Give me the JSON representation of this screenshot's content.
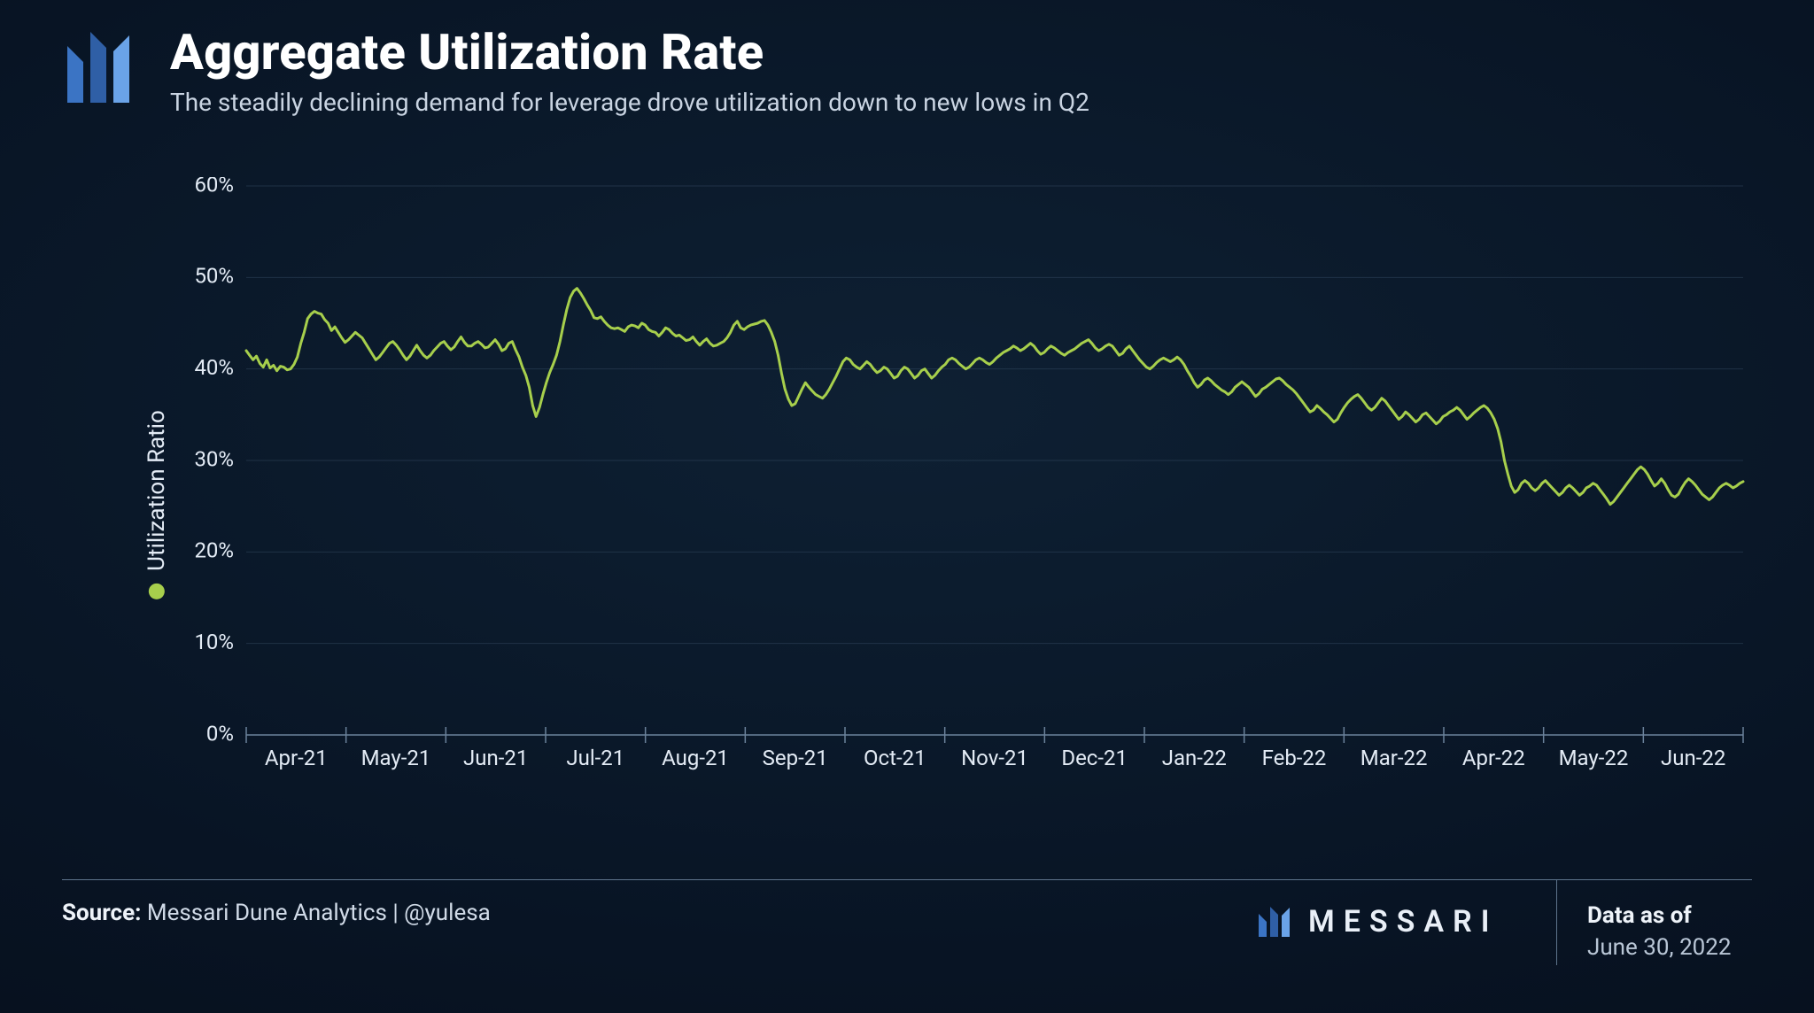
{
  "header": {
    "title": "Aggregate Utilization Rate",
    "subtitle": "The steadily declining demand for leverage drove utilization down to new lows in Q2"
  },
  "logo": {
    "bar_colors": [
      "#3b74c4",
      "#2f5fa6",
      "#6aa3e8"
    ]
  },
  "chart": {
    "type": "line",
    "ylabel": "Utilization Ratio",
    "series_color": "#a7cf4c",
    "legend_dot_color": "#a7cf4c",
    "line_width": 3,
    "background": "transparent",
    "grid_color": "#395068",
    "axis_color": "#6b829b",
    "tick_label_color": "#e3ebf5",
    "label_fontsize": 26,
    "tick_fontsize": 24,
    "ylim": [
      0,
      60
    ],
    "ytick_step": 10,
    "ytick_labels": [
      "0%",
      "10%",
      "20%",
      "30%",
      "40%",
      "50%",
      "60%"
    ],
    "x_labels": [
      "Apr-21",
      "May-21",
      "Jun-21",
      "Jul-21",
      "Aug-21",
      "Sep-21",
      "Oct-21",
      "Nov-21",
      "Dec-21",
      "Jan-22",
      "Feb-22",
      "Mar-22",
      "Apr-22",
      "May-22",
      "Jun-22"
    ],
    "x_count_months": 15,
    "values": [
      42.0,
      41.5,
      41.0,
      41.4,
      40.6,
      40.2,
      41.0,
      40.1,
      40.4,
      39.8,
      40.3,
      40.2,
      39.9,
      40.0,
      40.5,
      41.3,
      42.8,
      44.0,
      45.5,
      46.0,
      46.3,
      46.1,
      46.0,
      45.4,
      45.0,
      44.2,
      44.6,
      44.0,
      43.4,
      42.9,
      43.2,
      43.6,
      44.0,
      43.7,
      43.4,
      42.8,
      42.2,
      41.6,
      41.0,
      41.3,
      41.8,
      42.3,
      42.8,
      43.0,
      42.6,
      42.1,
      41.5,
      41.0,
      41.4,
      42.0,
      42.6,
      42.0,
      41.5,
      41.2,
      41.5,
      42.0,
      42.4,
      42.8,
      43.0,
      42.5,
      42.1,
      42.4,
      43.0,
      43.5,
      42.9,
      42.5,
      42.5,
      42.8,
      43.0,
      42.7,
      42.3,
      42.4,
      42.8,
      43.2,
      42.7,
      42.0,
      42.2,
      42.8,
      43.0,
      42.1,
      41.3,
      40.2,
      39.3,
      38.0,
      36.0,
      34.8,
      35.8,
      37.2,
      38.5,
      39.6,
      40.5,
      41.5,
      43.0,
      44.8,
      46.5,
      47.8,
      48.5,
      48.8,
      48.3,
      47.7,
      47.0,
      46.4,
      45.6,
      45.5,
      45.7,
      45.2,
      44.8,
      44.5,
      44.4,
      44.5,
      44.3,
      44.1,
      44.6,
      44.8,
      44.7,
      44.5,
      45.0,
      44.8,
      44.3,
      44.1,
      44.0,
      43.6,
      44.0,
      44.5,
      44.3,
      43.9,
      43.6,
      43.7,
      43.4,
      43.1,
      43.2,
      43.5,
      43.0,
      42.6,
      43.0,
      43.3,
      42.8,
      42.5,
      42.6,
      42.8,
      43.0,
      43.4,
      44.0,
      44.8,
      45.2,
      44.5,
      44.3,
      44.6,
      44.8,
      44.9,
      45.0,
      45.2,
      45.3,
      44.8,
      44.0,
      43.0,
      41.5,
      39.5,
      37.8,
      36.7,
      36.0,
      36.2,
      37.0,
      37.8,
      38.5,
      38.0,
      37.6,
      37.2,
      37.0,
      36.8,
      37.2,
      37.8,
      38.5,
      39.2,
      40.0,
      40.8,
      41.2,
      41.0,
      40.5,
      40.2,
      40.0,
      40.4,
      40.8,
      40.5,
      40.0,
      39.6,
      39.8,
      40.2,
      40.0,
      39.5,
      39.0,
      39.2,
      39.8,
      40.2,
      40.0,
      39.5,
      39.0,
      39.3,
      39.8,
      40.0,
      39.5,
      39.0,
      39.3,
      39.8,
      40.2,
      40.5,
      41.0,
      41.2,
      41.0,
      40.6,
      40.3,
      40.0,
      40.2,
      40.6,
      41.0,
      41.2,
      41.0,
      40.7,
      40.5,
      40.8,
      41.2,
      41.5,
      41.8,
      42.0,
      42.2,
      42.5,
      42.3,
      42.0,
      42.2,
      42.5,
      42.8,
      42.5,
      42.0,
      41.6,
      41.8,
      42.2,
      42.5,
      42.3,
      42.0,
      41.7,
      41.5,
      41.8,
      42.0,
      42.2,
      42.5,
      42.8,
      43.0,
      43.2,
      42.8,
      42.3,
      42.0,
      42.2,
      42.5,
      42.7,
      42.5,
      42.0,
      41.5,
      41.7,
      42.2,
      42.5,
      42.0,
      41.5,
      41.0,
      40.6,
      40.2,
      40.0,
      40.3,
      40.7,
      41.0,
      41.2,
      41.0,
      40.8,
      41.0,
      41.3,
      41.0,
      40.5,
      39.8,
      39.2,
      38.5,
      38.0,
      38.3,
      38.8,
      39.0,
      38.7,
      38.3,
      38.0,
      37.7,
      37.5,
      37.2,
      37.5,
      38.0,
      38.3,
      38.6,
      38.3,
      38.0,
      37.5,
      37.0,
      37.3,
      37.8,
      38.0,
      38.3,
      38.6,
      38.9,
      39.0,
      38.7,
      38.3,
      38.0,
      37.7,
      37.3,
      36.8,
      36.3,
      35.8,
      35.3,
      35.5,
      36.0,
      35.7,
      35.3,
      35.0,
      34.6,
      34.2,
      34.5,
      35.2,
      35.8,
      36.3,
      36.7,
      37.0,
      37.2,
      36.8,
      36.3,
      35.8,
      35.5,
      35.8,
      36.3,
      36.8,
      36.5,
      36.0,
      35.5,
      35.0,
      34.5,
      34.8,
      35.3,
      35.0,
      34.6,
      34.2,
      34.5,
      35.0,
      35.2,
      34.8,
      34.4,
      34.0,
      34.3,
      34.8,
      35.0,
      35.3,
      35.5,
      35.8,
      35.5,
      35.0,
      34.5,
      34.8,
      35.2,
      35.5,
      35.8,
      36.0,
      35.7,
      35.2,
      34.5,
      33.5,
      32.0,
      30.0,
      28.5,
      27.2,
      26.5,
      26.8,
      27.5,
      27.8,
      27.5,
      27.0,
      26.7,
      27.0,
      27.5,
      27.8,
      27.4,
      27.0,
      26.6,
      26.2,
      26.5,
      27.0,
      27.3,
      27.0,
      26.6,
      26.2,
      26.5,
      27.0,
      27.2,
      27.5,
      27.3,
      26.8,
      26.3,
      25.8,
      25.2,
      25.5,
      26.0,
      26.5,
      27.0,
      27.5,
      28.0,
      28.5,
      29.0,
      29.3,
      29.0,
      28.5,
      27.8,
      27.2,
      27.5,
      28.0,
      27.5,
      26.8,
      26.2,
      26.0,
      26.3,
      27.0,
      27.6,
      28.0,
      27.7,
      27.3,
      26.8,
      26.3,
      26.0,
      25.7,
      26.0,
      26.5,
      27.0,
      27.3,
      27.5,
      27.3,
      27.0,
      27.2,
      27.5,
      27.7
    ]
  },
  "footer": {
    "source_label": "Source:",
    "source_value": "Messari Dune Analytics | @yulesa",
    "brand": "MESSARI",
    "asof_label": "Data as of",
    "asof_value": "June 30, 2022"
  }
}
